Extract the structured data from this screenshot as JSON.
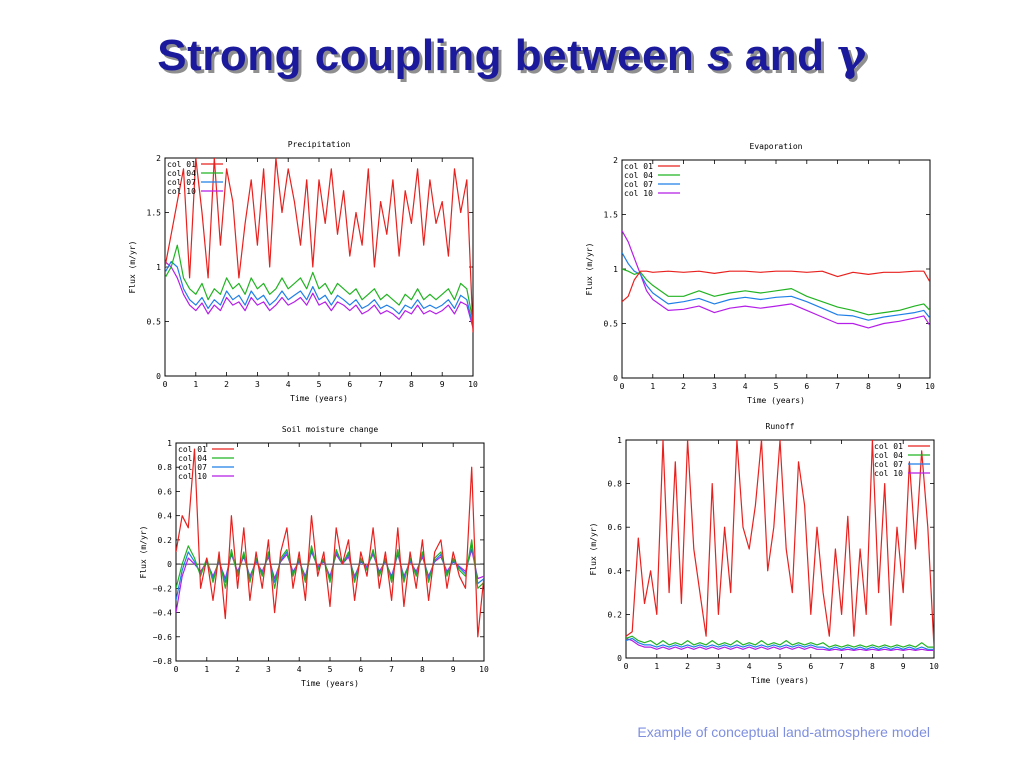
{
  "title": {
    "prefix": "Strong coupling between ",
    "s": "s",
    "and": " and ",
    "gamma": "γ"
  },
  "caption": "Example of conceptual land-atmosphere model",
  "colors": {
    "col 01": "#e8211e",
    "col 04": "#22b322",
    "col 07": "#1f7fe8",
    "col 10": "#b41ee8",
    "title": "#1c1a9c",
    "caption": "#7e8fe0"
  },
  "chart_data": [
    {
      "type": "line",
      "title": "Precipitation",
      "xlabel": "Time (years)",
      "ylabel": "Flux (m/yr)",
      "xlim": [
        0,
        10
      ],
      "ylim": [
        0,
        2
      ],
      "xticks": [
        0,
        1,
        2,
        3,
        4,
        5,
        6,
        7,
        8,
        9,
        10
      ],
      "yticks": [
        0,
        0.5,
        1,
        1.5,
        2
      ],
      "legend": "top-left",
      "grid": false,
      "x": [
        0,
        0.2,
        0.4,
        0.6,
        0.8,
        1,
        1.2,
        1.4,
        1.6,
        1.8,
        2,
        2.2,
        2.4,
        2.6,
        2.8,
        3,
        3.2,
        3.4,
        3.6,
        3.8,
        4,
        4.2,
        4.4,
        4.6,
        4.8,
        5,
        5.2,
        5.4,
        5.6,
        5.8,
        6,
        6.2,
        6.4,
        6.6,
        6.8,
        7,
        7.2,
        7.4,
        7.6,
        7.8,
        8,
        8.2,
        8.4,
        8.6,
        8.8,
        9,
        9.2,
        9.4,
        9.6,
        9.8,
        10
      ],
      "series": [
        {
          "name": "col 01",
          "values": [
            1.0,
            1.3,
            1.6,
            1.9,
            0.9,
            2.0,
            1.5,
            0.9,
            2.0,
            1.2,
            1.9,
            1.6,
            0.9,
            1.4,
            1.8,
            1.2,
            1.9,
            1.0,
            2.0,
            1.5,
            1.9,
            1.6,
            1.2,
            1.8,
            1.0,
            1.8,
            1.4,
            1.9,
            1.3,
            1.7,
            1.1,
            1.5,
            1.2,
            1.9,
            1.0,
            1.6,
            1.3,
            1.8,
            1.1,
            1.7,
            1.4,
            1.9,
            1.2,
            1.8,
            1.4,
            1.6,
            1.1,
            1.9,
            1.5,
            1.8,
            0.4
          ]
        },
        {
          "name": "col 04",
          "values": [
            0.9,
            1.0,
            1.2,
            0.9,
            0.8,
            0.75,
            0.85,
            0.7,
            0.8,
            0.75,
            0.9,
            0.8,
            0.85,
            0.75,
            0.9,
            0.8,
            0.85,
            0.75,
            0.8,
            0.9,
            0.8,
            0.85,
            0.9,
            0.8,
            0.95,
            0.8,
            0.85,
            0.75,
            0.85,
            0.8,
            0.75,
            0.8,
            0.7,
            0.75,
            0.8,
            0.7,
            0.75,
            0.7,
            0.65,
            0.75,
            0.7,
            0.8,
            0.7,
            0.75,
            0.7,
            0.75,
            0.8,
            0.7,
            0.85,
            0.8,
            0.5
          ]
        },
        {
          "name": "col 07",
          "values": [
            0.95,
            1.05,
            1.0,
            0.8,
            0.7,
            0.65,
            0.72,
            0.62,
            0.7,
            0.65,
            0.78,
            0.7,
            0.74,
            0.65,
            0.78,
            0.7,
            0.74,
            0.65,
            0.7,
            0.78,
            0.7,
            0.74,
            0.78,
            0.7,
            0.82,
            0.7,
            0.74,
            0.65,
            0.74,
            0.7,
            0.65,
            0.7,
            0.62,
            0.65,
            0.7,
            0.62,
            0.65,
            0.62,
            0.57,
            0.65,
            0.62,
            0.7,
            0.62,
            0.65,
            0.62,
            0.65,
            0.7,
            0.62,
            0.74,
            0.7,
            0.46
          ]
        },
        {
          "name": "col 10",
          "values": [
            1.05,
            1.0,
            0.9,
            0.75,
            0.65,
            0.6,
            0.67,
            0.57,
            0.65,
            0.6,
            0.72,
            0.65,
            0.68,
            0.6,
            0.72,
            0.65,
            0.68,
            0.6,
            0.65,
            0.72,
            0.65,
            0.68,
            0.72,
            0.65,
            0.76,
            0.65,
            0.68,
            0.6,
            0.68,
            0.65,
            0.6,
            0.65,
            0.57,
            0.6,
            0.65,
            0.57,
            0.6,
            0.57,
            0.52,
            0.6,
            0.57,
            0.65,
            0.57,
            0.6,
            0.57,
            0.6,
            0.65,
            0.57,
            0.68,
            0.65,
            0.44
          ]
        }
      ]
    },
    {
      "type": "line",
      "title": "Evaporation",
      "xlabel": "Time (years)",
      "ylabel": "Flux (m/yr)",
      "xlim": [
        0,
        10
      ],
      "ylim": [
        0,
        2
      ],
      "xticks": [
        0,
        1,
        2,
        3,
        4,
        5,
        6,
        7,
        8,
        9,
        10
      ],
      "yticks": [
        0,
        0.5,
        1,
        1.5,
        2
      ],
      "legend": "top-left",
      "grid": false,
      "x": [
        0,
        0.2,
        0.4,
        0.6,
        0.8,
        1,
        1.5,
        2,
        2.5,
        3,
        3.5,
        4,
        4.5,
        5,
        5.5,
        6,
        6.5,
        7,
        7.5,
        8,
        8.5,
        9,
        9.5,
        9.8,
        10
      ],
      "series": [
        {
          "name": "col 01",
          "values": [
            0.7,
            0.75,
            0.9,
            0.98,
            0.98,
            0.97,
            0.98,
            0.97,
            0.98,
            0.96,
            0.98,
            0.98,
            0.97,
            0.98,
            0.98,
            0.97,
            0.98,
            0.93,
            0.97,
            0.95,
            0.97,
            0.97,
            0.98,
            0.98,
            0.88
          ]
        },
        {
          "name": "col 04",
          "values": [
            1.0,
            0.98,
            0.95,
            0.97,
            0.9,
            0.85,
            0.75,
            0.75,
            0.8,
            0.75,
            0.78,
            0.8,
            0.78,
            0.8,
            0.82,
            0.75,
            0.7,
            0.65,
            0.62,
            0.58,
            0.6,
            0.62,
            0.66,
            0.68,
            0.62
          ]
        },
        {
          "name": "col 07",
          "values": [
            1.15,
            1.05,
            0.98,
            0.95,
            0.85,
            0.78,
            0.68,
            0.7,
            0.73,
            0.68,
            0.72,
            0.74,
            0.72,
            0.74,
            0.75,
            0.7,
            0.64,
            0.58,
            0.57,
            0.53,
            0.56,
            0.58,
            0.6,
            0.62,
            0.55
          ]
        },
        {
          "name": "col 10",
          "values": [
            1.35,
            1.25,
            1.1,
            0.95,
            0.8,
            0.72,
            0.62,
            0.63,
            0.66,
            0.6,
            0.64,
            0.66,
            0.64,
            0.66,
            0.68,
            0.62,
            0.56,
            0.5,
            0.5,
            0.46,
            0.5,
            0.52,
            0.55,
            0.57,
            0.48
          ]
        }
      ]
    },
    {
      "type": "line",
      "title": "Soil moisture change",
      "xlabel": "Time (years)",
      "ylabel": "Flux (m/yr)",
      "xlim": [
        0,
        10
      ],
      "ylim": [
        -0.8,
        1
      ],
      "xticks": [
        0,
        1,
        2,
        3,
        4,
        5,
        6,
        7,
        8,
        9,
        10
      ],
      "yticks": [
        -0.8,
        -0.6,
        -0.4,
        -0.2,
        0,
        0.2,
        0.4,
        0.6,
        0.8,
        1
      ],
      "legend": "top-left",
      "grid": false,
      "zero_line": true,
      "x": [
        0,
        0.2,
        0.4,
        0.6,
        0.8,
        1,
        1.2,
        1.4,
        1.6,
        1.8,
        2,
        2.2,
        2.4,
        2.6,
        2.8,
        3,
        3.2,
        3.4,
        3.6,
        3.8,
        4,
        4.2,
        4.4,
        4.6,
        4.8,
        5,
        5.2,
        5.4,
        5.6,
        5.8,
        6,
        6.2,
        6.4,
        6.6,
        6.8,
        7,
        7.2,
        7.4,
        7.6,
        7.8,
        8,
        8.2,
        8.4,
        8.6,
        8.8,
        9,
        9.2,
        9.4,
        9.6,
        9.8,
        10
      ],
      "series": [
        {
          "name": "col 01",
          "values": [
            0.1,
            0.4,
            0.3,
            0.95,
            -0.2,
            0.05,
            -0.3,
            0.1,
            -0.45,
            0.4,
            -0.2,
            0.3,
            -0.3,
            0.1,
            -0.2,
            0.2,
            -0.4,
            0.1,
            0.3,
            -0.2,
            0.1,
            -0.3,
            0.4,
            -0.1,
            0.1,
            -0.35,
            0.3,
            0.0,
            0.2,
            -0.3,
            0.1,
            -0.1,
            0.3,
            -0.2,
            0.1,
            -0.3,
            0.3,
            -0.35,
            0.1,
            -0.2,
            0.2,
            -0.3,
            0.1,
            0.2,
            -0.2,
            0.1,
            -0.1,
            -0.2,
            0.8,
            -0.6,
            -0.1
          ]
        },
        {
          "name": "col 04",
          "values": [
            -0.2,
            0.0,
            0.15,
            0.05,
            -0.1,
            0.05,
            -0.15,
            0.05,
            -0.2,
            0.12,
            -0.1,
            0.1,
            -0.15,
            0.05,
            -0.1,
            0.1,
            -0.2,
            0.05,
            0.12,
            -0.1,
            0.05,
            -0.15,
            0.15,
            -0.05,
            0.05,
            -0.15,
            0.12,
            0.0,
            0.1,
            -0.15,
            0.05,
            -0.05,
            0.12,
            -0.1,
            0.05,
            -0.15,
            0.12,
            -0.15,
            0.05,
            -0.1,
            0.1,
            -0.15,
            0.05,
            0.1,
            -0.1,
            0.05,
            -0.05,
            -0.1,
            0.2,
            -0.2,
            -0.15
          ]
        },
        {
          "name": "col 07",
          "values": [
            -0.3,
            -0.05,
            0.1,
            0.02,
            -0.08,
            0.03,
            -0.12,
            0.03,
            -0.15,
            0.1,
            -0.08,
            0.08,
            -0.12,
            0.03,
            -0.08,
            0.08,
            -0.15,
            0.03,
            0.1,
            -0.08,
            0.03,
            -0.12,
            0.12,
            -0.03,
            0.03,
            -0.12,
            0.1,
            0.0,
            0.08,
            -0.12,
            0.03,
            -0.03,
            0.1,
            -0.08,
            0.03,
            -0.12,
            0.1,
            -0.12,
            0.03,
            -0.08,
            0.08,
            -0.12,
            0.03,
            0.08,
            -0.08,
            0.03,
            -0.03,
            -0.08,
            0.16,
            -0.16,
            -0.12
          ]
        },
        {
          "name": "col 10",
          "values": [
            -0.4,
            -0.1,
            0.05,
            0.0,
            -0.06,
            0.02,
            -0.1,
            0.02,
            -0.12,
            0.08,
            -0.06,
            0.06,
            -0.1,
            0.02,
            -0.06,
            0.06,
            -0.12,
            0.02,
            0.08,
            -0.06,
            0.02,
            -0.1,
            0.1,
            -0.02,
            0.02,
            -0.1,
            0.08,
            0.0,
            0.06,
            -0.1,
            0.02,
            -0.02,
            0.08,
            -0.06,
            0.02,
            -0.1,
            0.08,
            -0.1,
            0.02,
            -0.06,
            0.06,
            -0.1,
            0.02,
            0.06,
            -0.06,
            0.02,
            -0.02,
            -0.06,
            0.12,
            -0.12,
            -0.1
          ]
        }
      ]
    },
    {
      "type": "line",
      "title": "Runoff",
      "xlabel": "Time (years)",
      "ylabel": "Flux (m/yr)",
      "xlim": [
        0,
        10
      ],
      "ylim": [
        0,
        1
      ],
      "xticks": [
        0,
        1,
        2,
        3,
        4,
        5,
        6,
        7,
        8,
        9,
        10
      ],
      "yticks": [
        0,
        0.2,
        0.4,
        0.6,
        0.8,
        1
      ],
      "legend": "top-right",
      "grid": false,
      "x": [
        0,
        0.2,
        0.4,
        0.6,
        0.8,
        1,
        1.2,
        1.4,
        1.6,
        1.8,
        2,
        2.2,
        2.4,
        2.6,
        2.8,
        3,
        3.2,
        3.4,
        3.6,
        3.8,
        4,
        4.2,
        4.4,
        4.6,
        4.8,
        5,
        5.2,
        5.4,
        5.6,
        5.8,
        6,
        6.2,
        6.4,
        6.6,
        6.8,
        7,
        7.2,
        7.4,
        7.6,
        7.8,
        8,
        8.2,
        8.4,
        8.6,
        8.8,
        9,
        9.2,
        9.4,
        9.6,
        9.8,
        10
      ],
      "series": [
        {
          "name": "col 01",
          "values": [
            0.1,
            0.12,
            0.55,
            0.25,
            0.4,
            0.2,
            1.0,
            0.3,
            0.9,
            0.25,
            1.0,
            0.5,
            0.3,
            0.1,
            0.8,
            0.2,
            0.6,
            0.3,
            1.0,
            0.6,
            0.5,
            0.7,
            1.0,
            0.4,
            0.6,
            1.0,
            0.5,
            0.3,
            0.9,
            0.7,
            0.2,
            0.6,
            0.3,
            0.1,
            0.5,
            0.2,
            0.65,
            0.1,
            0.5,
            0.2,
            1.0,
            0.3,
            0.8,
            0.15,
            0.6,
            0.3,
            0.9,
            0.5,
            0.95,
            0.6,
            0.05
          ]
        },
        {
          "name": "col 04",
          "values": [
            0.09,
            0.1,
            0.08,
            0.07,
            0.08,
            0.06,
            0.08,
            0.06,
            0.07,
            0.06,
            0.08,
            0.06,
            0.07,
            0.06,
            0.08,
            0.06,
            0.07,
            0.06,
            0.08,
            0.06,
            0.07,
            0.06,
            0.08,
            0.06,
            0.07,
            0.06,
            0.08,
            0.06,
            0.07,
            0.06,
            0.07,
            0.06,
            0.07,
            0.05,
            0.06,
            0.05,
            0.06,
            0.05,
            0.06,
            0.05,
            0.06,
            0.05,
            0.06,
            0.05,
            0.06,
            0.05,
            0.06,
            0.05,
            0.07,
            0.05,
            0.05
          ]
        },
        {
          "name": "col 07",
          "values": [
            0.08,
            0.09,
            0.07,
            0.06,
            0.06,
            0.05,
            0.06,
            0.05,
            0.06,
            0.05,
            0.06,
            0.05,
            0.06,
            0.05,
            0.06,
            0.05,
            0.06,
            0.05,
            0.06,
            0.05,
            0.06,
            0.05,
            0.06,
            0.05,
            0.06,
            0.05,
            0.06,
            0.05,
            0.06,
            0.05,
            0.06,
            0.05,
            0.05,
            0.04,
            0.05,
            0.04,
            0.05,
            0.04,
            0.05,
            0.04,
            0.05,
            0.04,
            0.05,
            0.04,
            0.05,
            0.04,
            0.05,
            0.04,
            0.05,
            0.04,
            0.04
          ]
        },
        {
          "name": "col 10",
          "values": [
            0.09,
            0.08,
            0.06,
            0.05,
            0.05,
            0.04,
            0.05,
            0.04,
            0.05,
            0.04,
            0.05,
            0.04,
            0.05,
            0.04,
            0.05,
            0.04,
            0.05,
            0.04,
            0.05,
            0.04,
            0.05,
            0.04,
            0.05,
            0.04,
            0.05,
            0.04,
            0.05,
            0.04,
            0.05,
            0.04,
            0.05,
            0.04,
            0.04,
            0.035,
            0.04,
            0.035,
            0.04,
            0.035,
            0.04,
            0.035,
            0.04,
            0.035,
            0.04,
            0.035,
            0.04,
            0.035,
            0.04,
            0.035,
            0.04,
            0.035,
            0.035
          ]
        }
      ]
    }
  ]
}
